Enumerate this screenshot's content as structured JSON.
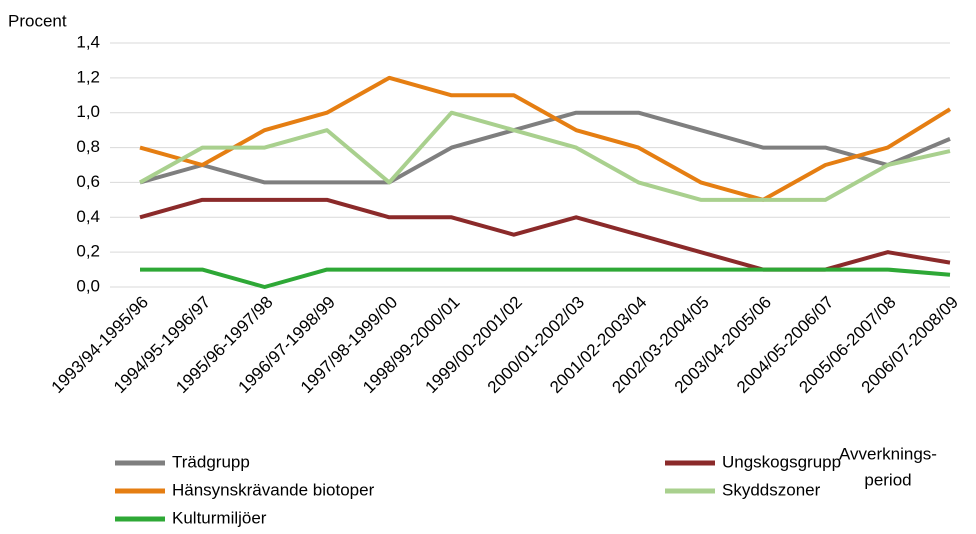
{
  "chart_data": {
    "type": "line",
    "y_label": "Procent",
    "x_label": [
      "Avverknings-",
      "period"
    ],
    "categories": [
      "1993/94-1995/96",
      "1994/95-1996/97",
      "1995/96-1997/98",
      "1996/97-1998/99",
      "1997/98-1999/00",
      "1998/99-2000/01",
      "1999/00-2001/02",
      "2000/01-2002/03",
      "2001/02-2003/04",
      "2002/03-2004/05",
      "2003/04-2005/06",
      "2004/05-2006/07",
      "2005/06-2007/08",
      "2006/07-2008/09"
    ],
    "series": [
      {
        "name": "Trädgrupp",
        "color": "#7f7f7f",
        "values": [
          0.6,
          0.7,
          0.6,
          0.6,
          0.6,
          0.8,
          0.9,
          1.0,
          1.0,
          0.9,
          0.8,
          0.8,
          0.7,
          0.85
        ]
      },
      {
        "name": "Ungskogsgrupp",
        "color": "#8b2a2a",
        "values": [
          0.4,
          0.5,
          0.5,
          0.5,
          0.4,
          0.4,
          0.3,
          0.4,
          0.3,
          0.2,
          0.1,
          0.1,
          0.2,
          0.14
        ]
      },
      {
        "name": "Hänsynskrävande biotoper",
        "color": "#e57e12",
        "values": [
          0.8,
          0.7,
          0.9,
          1.0,
          1.2,
          1.1,
          1.1,
          0.9,
          0.8,
          0.6,
          0.5,
          0.7,
          0.8,
          1.02
        ]
      },
      {
        "name": "Skyddszoner",
        "color": "#a9d08e",
        "values": [
          0.6,
          0.8,
          0.8,
          0.9,
          0.6,
          1.0,
          0.9,
          0.8,
          0.6,
          0.5,
          0.5,
          0.5,
          0.7,
          0.78
        ]
      },
      {
        "name": "Kulturmiljöer",
        "color": "#2ea836",
        "values": [
          0.1,
          0.1,
          0.0,
          0.1,
          0.1,
          0.1,
          0.1,
          0.1,
          0.1,
          0.1,
          0.1,
          0.1,
          0.1,
          0.07
        ]
      }
    ],
    "ylim": [
      0,
      1.4
    ],
    "yticks": [
      {
        "value": 0,
        "label": "0,0"
      },
      {
        "value": 0.2,
        "label": "0,2"
      },
      {
        "value": 0.4,
        "label": "0,4"
      },
      {
        "value": 0.6,
        "label": "0,6"
      },
      {
        "value": 0.8,
        "label": "0,8"
      },
      {
        "value": 1.0,
        "label": "1,0"
      },
      {
        "value": 1.2,
        "label": "1,2"
      },
      {
        "value": 1.4,
        "label": "1,4"
      }
    ],
    "grid": true
  }
}
